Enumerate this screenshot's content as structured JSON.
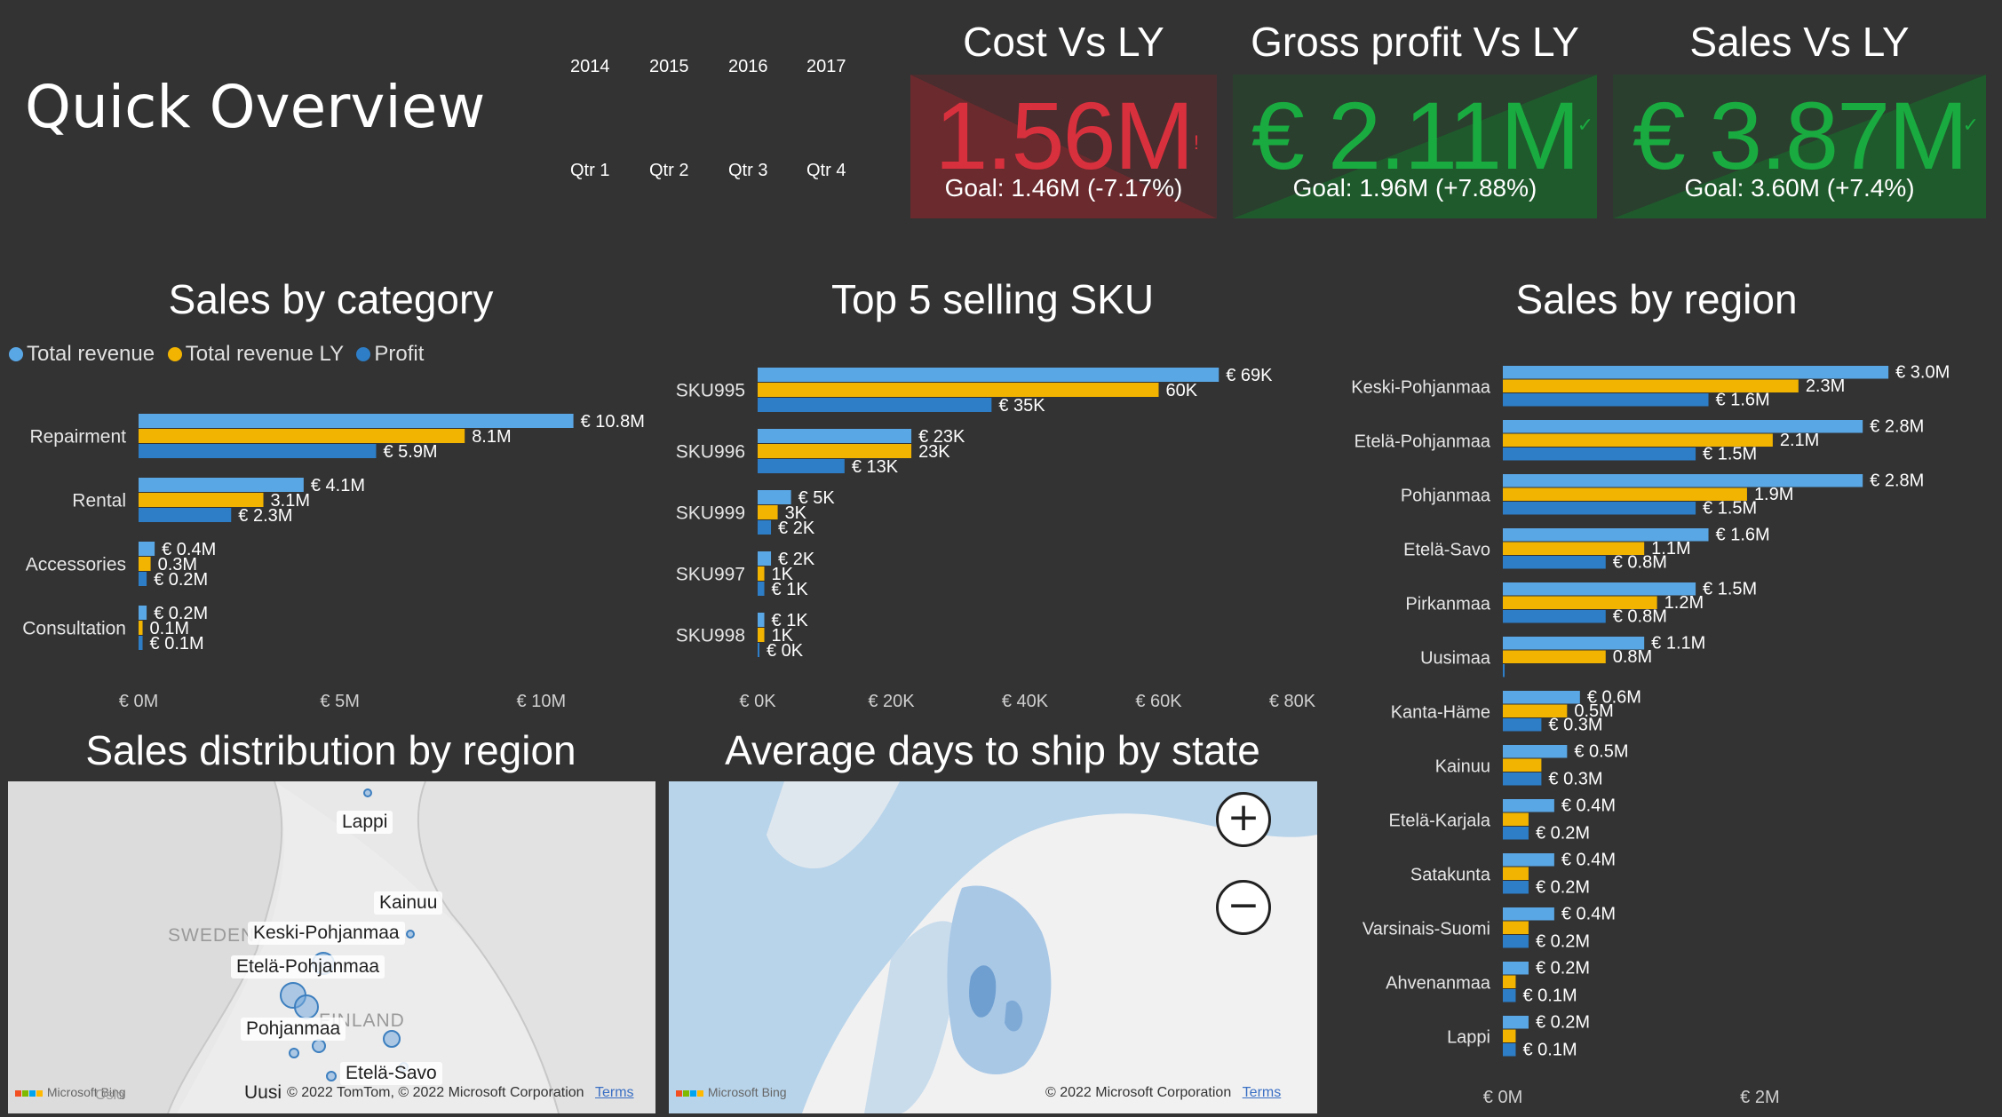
{
  "page": {
    "title": "Quick Overview"
  },
  "slicers": {
    "years": [
      "2014",
      "2015",
      "2016",
      "2017"
    ],
    "quarters": [
      "Qtr 1",
      "Qtr 2",
      "Qtr 3",
      "Qtr 4"
    ]
  },
  "kpis": [
    {
      "title": "Cost Vs LY",
      "value": "1.56M",
      "goal": "Goal: 1.46M (-7.17%)",
      "status": "bad",
      "mark": "!",
      "color": "#d9303d"
    },
    {
      "title": "Gross profit Vs LY",
      "value": "€ 2.11M",
      "goal": "Goal: 1.96M (+7.88%)",
      "status": "good",
      "mark": "✓",
      "color": "#1aab40"
    },
    {
      "title": "Sales Vs LY",
      "value": "€ 3.87M",
      "goal": "Goal: 3.60M (+7.4%)",
      "status": "good",
      "mark": "✓",
      "color": "#1aab40"
    }
  ],
  "colors": {
    "total_revenue": "#5aa7e6",
    "total_revenue_ly": "#f2b400",
    "profit": "#2d7ec7"
  },
  "charts": {
    "category_title": "Sales by category",
    "sku_title": "Top 5 selling SKU",
    "region_title": "Sales by region",
    "legend": [
      "Total revenue",
      "Total revenue LY",
      "Profit"
    ]
  },
  "chart_data": [
    {
      "type": "bar",
      "title": "Sales by category",
      "orientation": "horizontal",
      "categories": [
        "Repairment",
        "Rental",
        "Accessories",
        "Consultation"
      ],
      "series": [
        {
          "name": "Total revenue",
          "values": [
            10.8,
            4.1,
            0.4,
            0.2
          ],
          "labels": [
            "€ 10.8M",
            "€ 4.1M",
            "€ 0.4M",
            "€ 0.2M"
          ]
        },
        {
          "name": "Total revenue LY",
          "values": [
            8.1,
            3.1,
            0.3,
            0.1
          ],
          "labels": [
            "8.1M",
            "3.1M",
            "0.3M",
            "0.1M"
          ]
        },
        {
          "name": "Profit",
          "values": [
            5.9,
            2.3,
            0.2,
            0.1
          ],
          "labels": [
            "€ 5.9M",
            "€ 2.3M",
            "€ 0.2M",
            "€ 0.1M"
          ]
        }
      ],
      "xlim": [
        0,
        12
      ],
      "xticks": [
        0,
        5,
        10
      ],
      "xtick_labels": [
        "€ 0M",
        "€ 5M",
        "€ 10M"
      ],
      "legend": "top-left"
    },
    {
      "type": "bar",
      "title": "Top 5 selling SKU",
      "orientation": "horizontal",
      "categories": [
        "SKU995",
        "SKU996",
        "SKU999",
        "SKU997",
        "SKU998"
      ],
      "series": [
        {
          "name": "Total revenue",
          "values": [
            69,
            23,
            5,
            2,
            1
          ],
          "labels": [
            "€ 69K",
            "€ 23K",
            "€ 5K",
            "€ 2K",
            "€ 1K"
          ]
        },
        {
          "name": "Total revenue LY",
          "values": [
            60,
            23,
            3,
            1,
            1
          ],
          "labels": [
            "60K",
            "23K",
            "3K",
            "1K",
            "1K"
          ]
        },
        {
          "name": "Profit",
          "values": [
            35,
            13,
            2,
            1,
            0
          ],
          "labels": [
            "€ 35K",
            "€ 13K",
            "€ 2K",
            "€ 1K",
            "€ 0K"
          ]
        }
      ],
      "xlim": [
        0,
        80
      ],
      "xticks": [
        0,
        20,
        40,
        60,
        80
      ],
      "xtick_labels": [
        "€ 0K",
        "€ 20K",
        "€ 40K",
        "€ 60K",
        "€ 80K"
      ]
    },
    {
      "type": "bar",
      "title": "Sales by region",
      "orientation": "horizontal",
      "categories": [
        "Keski-Pohjanmaa",
        "Etelä-Pohjanmaa",
        "Pohjanmaa",
        "Etelä-Savo",
        "Pirkanmaa",
        "Uusimaa",
        "Kanta-Häme",
        "Kainuu",
        "Etelä-Karjala",
        "Satakunta",
        "Varsinais-Suomi",
        "Ahvenanmaa",
        "Lappi"
      ],
      "series": [
        {
          "name": "Total revenue",
          "values": [
            3.0,
            2.8,
            2.8,
            1.6,
            1.5,
            1.1,
            0.6,
            0.5,
            0.4,
            0.4,
            0.4,
            0.2,
            0.2
          ],
          "labels": [
            "€ 3.0M",
            "€ 2.8M",
            "€ 2.8M",
            "€ 1.6M",
            "€ 1.5M",
            "€ 1.1M",
            "€ 0.6M",
            "€ 0.5M",
            "€ 0.4M",
            "€ 0.4M",
            "€ 0.4M",
            "€ 0.2M",
            "€ 0.2M"
          ]
        },
        {
          "name": "Total revenue LY",
          "values": [
            2.3,
            2.1,
            1.9,
            1.1,
            1.2,
            0.8,
            0.5,
            0.3,
            0.2,
            0.2,
            0.2,
            0.1,
            0.1
          ],
          "labels": [
            "2.3M",
            "2.1M",
            "1.9M",
            "1.1M",
            "1.2M",
            "0.8M",
            "0.5M",
            "",
            "",
            "",
            "",
            "",
            ""
          ]
        },
        {
          "name": "Profit",
          "values": [
            1.6,
            1.5,
            1.5,
            0.8,
            0.8,
            0.0,
            0.3,
            0.3,
            0.2,
            0.2,
            0.2,
            0.1,
            0.1
          ],
          "labels": [
            "€ 1.6M",
            "€ 1.5M",
            "€ 1.5M",
            "€ 0.8M",
            "€ 0.8M",
            "",
            "€ 0.3M",
            "€ 0.3M",
            "€ 0.2M",
            "€ 0.2M",
            "€ 0.2M",
            "€ 0.1M",
            "€ 0.1M"
          ]
        }
      ],
      "xlim": [
        0,
        3.4
      ],
      "xticks": [
        0,
        2
      ],
      "xtick_labels": [
        "€ 0M",
        "€ 2M"
      ]
    }
  ],
  "maps": {
    "distribution": {
      "title": "Sales distribution by region",
      "labels": [
        "Lappi",
        "Kainuu",
        "Keski-Pohjanmaa",
        "Etelä-Pohjanmaa",
        "Pohjanmaa",
        "Etelä-Savo",
        "Uusi"
      ],
      "countries": [
        "SWEDEN",
        "FINLAND"
      ],
      "oslo": "Oslo",
      "copyright": "© 2022 TomTom, © 2022 Microsoft Corporation",
      "terms": "Terms",
      "provider": "Microsoft Bing"
    },
    "shipping": {
      "title": "Average days to ship by state",
      "copyright": "© 2022 Microsoft Corporation",
      "terms": "Terms",
      "provider": "Microsoft Bing",
      "zoom_in": "+",
      "zoom_out": "−"
    }
  }
}
